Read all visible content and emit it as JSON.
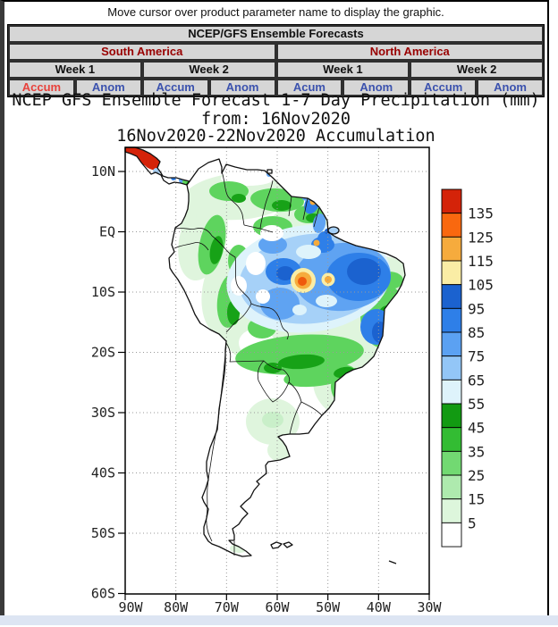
{
  "page": {
    "notice": "Move cursor over product parameter name to display the graphic."
  },
  "table": {
    "title": "NCEP/GFS Ensemble Forecasts",
    "header_color": "#990000",
    "regions": [
      {
        "label": "South America"
      },
      {
        "label": "North America"
      }
    ],
    "weeks": [
      {
        "label": "Week 1"
      },
      {
        "label": "Week 2"
      },
      {
        "label": "Week 1"
      },
      {
        "label": "Week 2"
      }
    ],
    "links": [
      {
        "label": "Accum",
        "color": "#e8423c"
      },
      {
        "label": "Anom",
        "color": "#3b52ae"
      },
      {
        "label": "Accum",
        "color": "#3b52ae"
      },
      {
        "label": "Anom",
        "color": "#3b52ae"
      },
      {
        "label": "Acum",
        "color": "#3b52ae"
      },
      {
        "label": "Anom",
        "color": "#3b52ae"
      },
      {
        "label": "Accum",
        "color": "#3b52ae"
      },
      {
        "label": "Anom",
        "color": "#3b52ae"
      }
    ]
  },
  "graphic": {
    "title_line1": "NCEP GFS Ensemble Forecast 1-7 Day Precipitation (mm)",
    "title_line2": "from: 16Nov2020",
    "title_line3": "16Nov2020-22Nov2020 Accumulation",
    "lat_labels": [
      "10N",
      "EQ",
      "10S",
      "20S",
      "30S",
      "40S",
      "50S",
      "60S"
    ],
    "lon_labels": [
      "90W",
      "80W",
      "70W",
      "60W",
      "50W",
      "40W",
      "30W"
    ],
    "colorbar": {
      "values": [
        135,
        125,
        115,
        105,
        95,
        85,
        75,
        65,
        55,
        45,
        35,
        25,
        15,
        5
      ],
      "colors": [
        "#d42309",
        "#f9680f",
        "#f6ab3d",
        "#faeda5",
        "#1b62cf",
        "#2e7fe8",
        "#5ba1f2",
        "#93c6f7",
        "#def3fb",
        "#129a12",
        "#33bc33",
        "#72d972",
        "#aeeaae",
        "#ddf6dc",
        "#ffffff"
      ]
    }
  }
}
